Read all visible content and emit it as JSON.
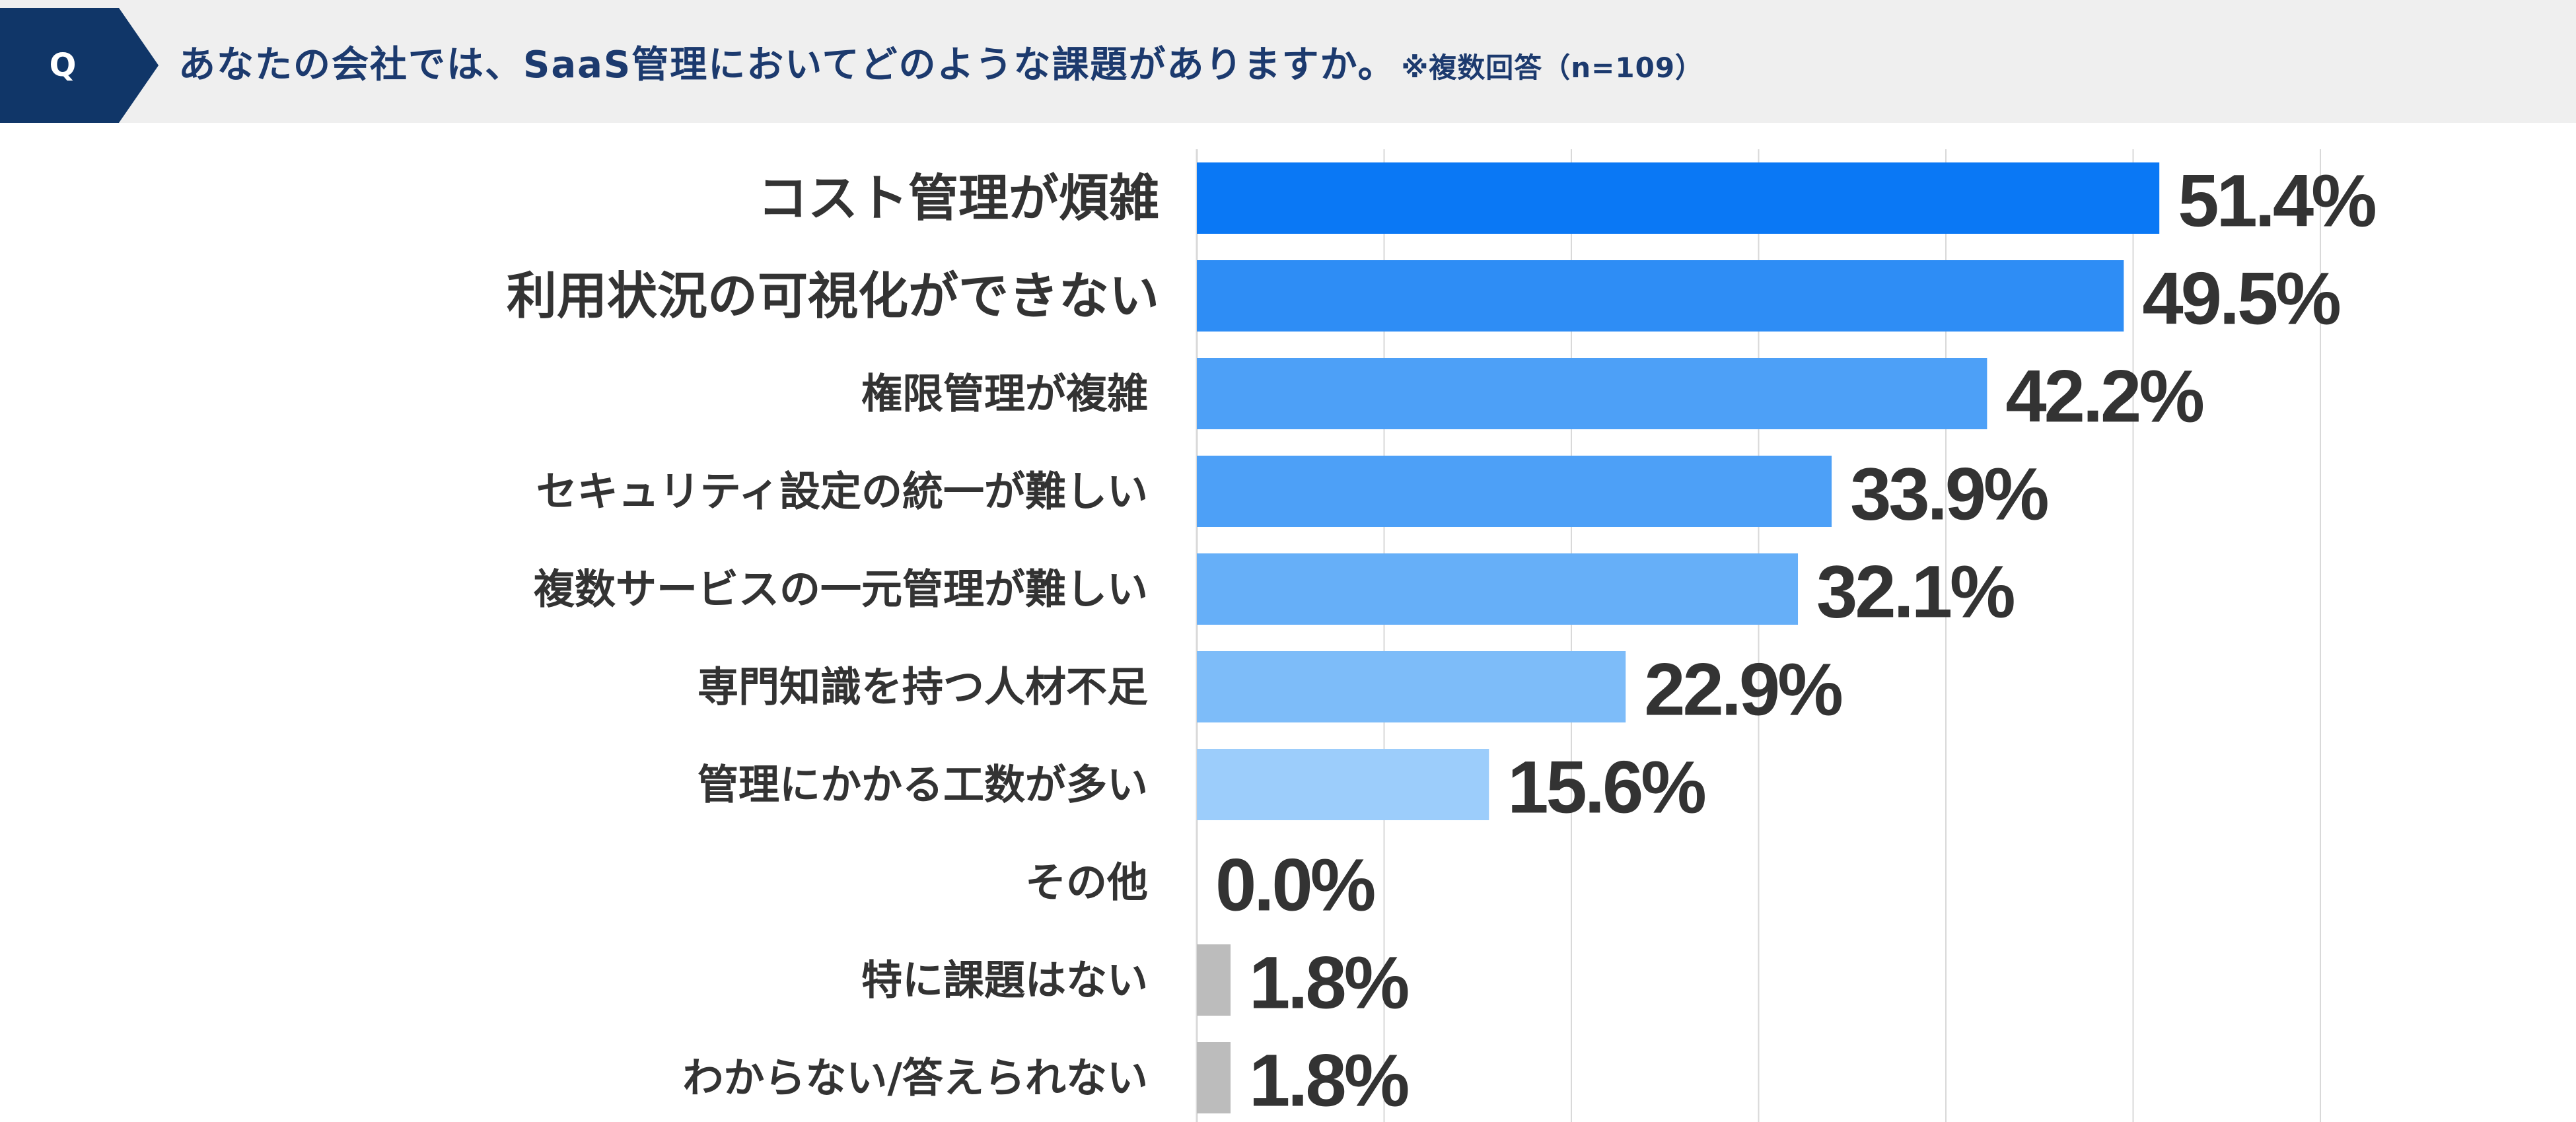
{
  "header": {
    "badge": "Q",
    "question": "あなたの会社では、SaaS管理においてどのような課題がありますか。",
    "note": "※複数回答（n=109）"
  },
  "colors": {
    "header_bg": "#efefef",
    "badge_bg": "#103668",
    "question_text": "#1c3a6e",
    "value_text": "#333333",
    "category_text": "#333333",
    "gray_bar": "#bcbcbc",
    "gridline": "#d9d9d9"
  },
  "chart_data": {
    "type": "bar",
    "orientation": "horizontal",
    "categories": [
      "コスト管理が煩雑",
      "利用状況の可視化ができない",
      "権限管理が複雑",
      "セキュリティ設定の統一が難しい",
      "複数サービスの一元管理が難しい",
      "専門知識を持つ人材不足",
      "管理にかかる工数が多い",
      "その他",
      "特に課題はない",
      "わからない/答えられない"
    ],
    "values": [
      51.4,
      49.5,
      42.2,
      33.9,
      32.1,
      22.9,
      15.6,
      0.0,
      1.8,
      1.8
    ],
    "value_labels": [
      "51.4%",
      "49.5%",
      "42.2%",
      "33.9%",
      "32.1%",
      "22.9%",
      "15.6%",
      "0.0%",
      "1.8%",
      "1.8%"
    ],
    "bar_colors": [
      "#0a78f5",
      "#2e8df5",
      "#4da0f7",
      "#4da0f7",
      "#66aff8",
      "#7dbcf9",
      "#9ccdfb",
      "#9ccdfb",
      "#bcbcbc",
      "#bcbcbc"
    ],
    "xlim": [
      0,
      60
    ],
    "grid": true,
    "gridline_count": 6
  }
}
